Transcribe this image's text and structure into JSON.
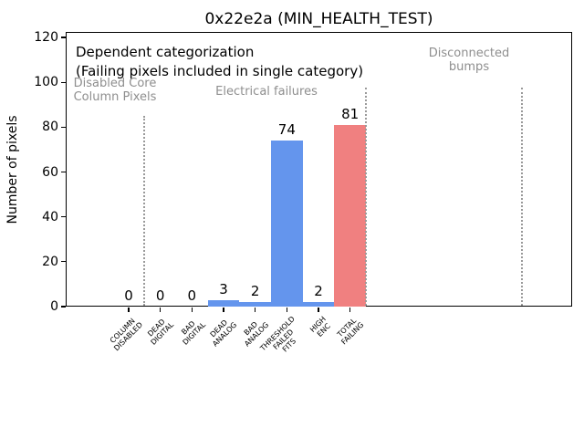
{
  "title": "0x22e2a (MIN_HEALTH_TEST)",
  "ylabel": "Number of pixels",
  "notes": {
    "dependent": "Dependent categorization\n(Failing pixels included in single category)",
    "region_disabled": "Disabled Core\nColumn Pixels",
    "region_electrical": "Electrical failures",
    "region_disconnected": "Disconnected\nbumps"
  },
  "colors": {
    "bar_blue": "#6495ED",
    "bar_red": "#F08080",
    "gray_text": "#8e8e8e",
    "separator": "#9a9a9a"
  },
  "chart_data": {
    "type": "bar",
    "title": "0x22e2a (MIN_HEALTH_TEST)",
    "xlabel": "",
    "ylabel": "Number of pixels",
    "ylim": [
      0,
      122
    ],
    "yticks": [
      0,
      20,
      40,
      60,
      80,
      100,
      120
    ],
    "grid": false,
    "legend": null,
    "categories": [
      "COLUMN\nDISABLED",
      "DEAD\nDIGITAL",
      "BAD\nDIGITAL",
      "DEAD\nANALOG",
      "BAD\nANALOG",
      "THRESHOLD\nFAILED\nFITS",
      "HIGH\nENC",
      "TOTAL\nFAILING"
    ],
    "values": [
      0,
      0,
      0,
      3,
      2,
      74,
      2,
      81
    ],
    "bar_labels": [
      "0",
      "0",
      "0",
      "3",
      "2",
      "74",
      "2",
      "81"
    ],
    "bar_colors": [
      "#6495ED",
      "#6495ED",
      "#6495ED",
      "#6495ED",
      "#6495ED",
      "#6495ED",
      "#6495ED",
      "#F08080"
    ],
    "separators": [
      {
        "x_category_units": 0.5,
        "top_value": 85
      },
      {
        "x_category_units": 7.5,
        "top_value": 97.6
      },
      {
        "x_category_units": 12.44,
        "top_value": 97.6
      }
    ],
    "region_annotations": [
      {
        "text": "Disabled Core\nColumn Pixels",
        "color": "gray"
      },
      {
        "text": "Electrical failures",
        "color": "gray"
      },
      {
        "text": "Disconnected\nbumps",
        "color": "gray"
      }
    ],
    "note": "Dependent categorization\n(Failing pixels included in single category)"
  }
}
